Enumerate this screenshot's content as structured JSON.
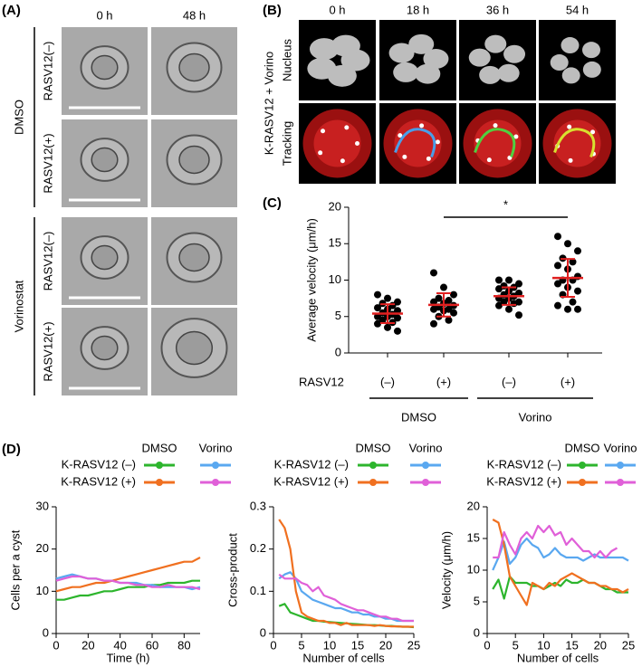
{
  "panel_a": {
    "label": "(A)",
    "columns": [
      "0 h",
      "48 h"
    ],
    "rows": [
      "RASV12(–)",
      "RASV12(+)",
      "RASV12(–)",
      "RASV12(+)"
    ],
    "groups": [
      "DMSO",
      "Vorinostat"
    ]
  },
  "panel_b": {
    "label": "(B)",
    "columns": [
      "0 h",
      "18 h",
      "36 h",
      "54 h"
    ],
    "rows": [
      "Nucleus",
      "Tracking"
    ],
    "condition": "K-RASV12 + Vorino"
  },
  "chart_data": [
    {
      "type": "strip",
      "panel_label": "(C)",
      "y_label": "Average velocity (μm/h)",
      "row_label": "RASV12",
      "categories": [
        "(–)",
        "(+)",
        "(–)",
        "(+)"
      ],
      "groups": [
        "DMSO",
        "Vorino"
      ],
      "significance": "*",
      "ylim": [
        0,
        20
      ],
      "yticks": [
        0,
        5,
        10,
        15,
        20
      ],
      "point_color": "#000000",
      "stat_color": "#e02020",
      "points": [
        [
          8,
          7.5,
          7,
          6.8,
          6.5,
          6.2,
          6,
          5.8,
          5.5,
          5.3,
          5,
          5,
          4.8,
          4.5,
          4.2,
          4,
          3.5,
          3
        ],
        [
          11,
          9,
          8,
          7.5,
          7.2,
          7,
          6.8,
          6.5,
          6.3,
          6,
          6,
          5.8,
          5.5,
          5,
          4.5,
          4
        ],
        [
          10,
          10,
          9.5,
          9.2,
          9,
          8.8,
          8.5,
          8.2,
          8,
          7.8,
          7.5,
          7.5,
          7,
          7,
          6.8,
          6.5,
          6,
          5.2
        ],
        [
          16,
          15,
          14,
          13,
          12.5,
          12,
          11.5,
          10.5,
          10,
          10,
          9.5,
          9,
          8.5,
          8,
          7,
          6.5,
          6,
          6
        ]
      ],
      "means": [
        5.4,
        6.6,
        7.8,
        10.3
      ],
      "sd": [
        1.3,
        1.6,
        1.2,
        2.6
      ]
    },
    {
      "type": "line",
      "panel_label": "(D)",
      "x_label": "Time (h)",
      "y_label": "Cells per a cyst",
      "legend": {
        "columns": [
          "DMSO",
          "Vorino"
        ],
        "rows": [
          "K-RASV12 (–)",
          "K-RASV12 (+)"
        ]
      },
      "xlim": [
        0,
        90
      ],
      "xticks": [
        0,
        20,
        40,
        60,
        80
      ],
      "ylim": [
        0,
        30
      ],
      "yticks": [
        0,
        10,
        20,
        30
      ],
      "x": [
        0,
        5,
        10,
        15,
        20,
        25,
        30,
        35,
        40,
        45,
        50,
        55,
        60,
        65,
        70,
        75,
        80,
        85,
        90
      ],
      "series": [
        {
          "color": "#2db52d",
          "values": [
            8,
            8,
            8.5,
            9,
            9,
            9.5,
            10,
            10,
            10.5,
            11,
            11,
            11,
            11.5,
            11.5,
            12,
            12,
            12,
            12.5,
            12.5
          ]
        },
        {
          "color": "#5aa8f0",
          "values": [
            13,
            13.5,
            14,
            13.5,
            13,
            13,
            12.5,
            12.5,
            12,
            12,
            12,
            11.5,
            11.5,
            11,
            11,
            11,
            11,
            10.5,
            11
          ]
        },
        {
          "color": "#f07020",
          "values": [
            10,
            10.5,
            11,
            11,
            11.5,
            12,
            12,
            12.5,
            13,
            13.5,
            14,
            14.5,
            15,
            15.5,
            16,
            16.5,
            17,
            17,
            18
          ]
        },
        {
          "color": "#e060d8",
          "values": [
            12.5,
            13,
            13.5,
            13.5,
            13,
            13,
            12.5,
            12.5,
            12,
            12,
            11.5,
            11.5,
            11,
            11,
            11.5,
            11,
            11,
            11,
            10.5
          ]
        }
      ]
    },
    {
      "type": "line",
      "x_label": "Number of cells",
      "y_label": "Cross-product",
      "legend": {
        "columns": [
          "DMSO",
          "Vorino"
        ],
        "rows": [
          "K-RASV12 (–)",
          "K-RASV12 (+)"
        ]
      },
      "xlim": [
        0,
        25
      ],
      "xticks": [
        0,
        5,
        10,
        15,
        20,
        25
      ],
      "ylim": [
        0,
        0.3
      ],
      "yticks": [
        0,
        0.1,
        0.2,
        0.3
      ],
      "x": [
        1,
        2,
        3,
        4,
        5,
        6,
        7,
        8,
        9,
        10,
        11,
        12,
        13,
        14,
        15,
        16,
        17,
        18,
        19,
        20,
        21,
        22,
        23,
        24,
        25
      ],
      "series": [
        {
          "color": "#2db52d",
          "values": [
            0.065,
            0.07,
            0.05,
            0.045,
            0.04,
            0.035,
            0.03,
            0.03,
            0.028,
            0.027,
            0.026,
            0.025,
            0.024,
            0.023,
            0.022,
            0.021,
            0.02,
            0.02,
            0.019,
            0.018,
            0.018,
            0.017,
            0.016,
            0.016,
            0.015
          ]
        },
        {
          "color": "#5aa8f0",
          "values": [
            0.13,
            0.14,
            0.145,
            0.13,
            0.1,
            0.09,
            0.08,
            0.075,
            0.07,
            0.065,
            0.06,
            0.06,
            0.055,
            0.05,
            0.05,
            0.045,
            0.045,
            0.04,
            0.04,
            0.035,
            0.035,
            0.03,
            0.03,
            0.03,
            0.03
          ]
        },
        {
          "color": "#f07020",
          "values": [
            0.27,
            0.25,
            0.2,
            0.1,
            0.05,
            0.04,
            0.035,
            0.03,
            0.03,
            0.025,
            0.025,
            0.02,
            0.025,
            0.02,
            0.02,
            0.02,
            0.02,
            0.018,
            0.02,
            0.018,
            0.017,
            0.017,
            0.016,
            0.016,
            0.016
          ]
        },
        {
          "color": "#e060d8",
          "values": [
            0.14,
            0.13,
            0.13,
            0.13,
            0.12,
            0.115,
            0.1,
            0.11,
            0.09,
            0.085,
            0.08,
            0.07,
            0.065,
            0.06,
            0.055,
            0.055,
            0.05,
            0.045,
            0.04,
            0.04,
            0.035,
            0.035,
            0.03,
            0.03,
            0.03
          ]
        }
      ]
    },
    {
      "type": "line",
      "x_label": "Number of cells",
      "y_label": "Velocity (μm/h)",
      "legend": {
        "columns": [
          "DMSO",
          "Vorino"
        ],
        "rows": [
          "K-RASV12 (–)",
          "K-RASV12 (+)"
        ]
      },
      "xlim": [
        0,
        25
      ],
      "xticks": [
        0,
        5,
        10,
        15,
        20,
        25
      ],
      "ylim": [
        0,
        20
      ],
      "yticks": [
        0,
        5,
        10,
        15,
        20
      ],
      "x": [
        1,
        2,
        3,
        4,
        5,
        6,
        7,
        8,
        9,
        10,
        11,
        12,
        13,
        14,
        15,
        16,
        17,
        18,
        19,
        20,
        21,
        22,
        23,
        24,
        25
      ],
      "series": [
        {
          "color": "#2db52d",
          "values": [
            7,
            8.5,
            5.5,
            9,
            8,
            8,
            8,
            7.5,
            7.5,
            7,
            7.5,
            8,
            7.5,
            8.5,
            8,
            8,
            8.5,
            8,
            8,
            7.5,
            7,
            7,
            6.5,
            6.5,
            6.5
          ]
        },
        {
          "color": "#5aa8f0",
          "values": [
            10,
            12,
            14.5,
            11,
            12,
            14,
            15,
            14,
            13.5,
            12,
            12.5,
            13.5,
            12.5,
            12,
            12,
            12,
            11.5,
            12,
            12.5,
            12,
            12,
            12,
            12,
            12,
            11.5
          ]
        },
        {
          "color": "#f07020",
          "values": [
            18,
            17.5,
            14,
            9,
            7.5,
            6,
            4.5,
            8,
            7.5,
            7,
            8,
            7.5,
            8.5,
            9,
            9.5,
            9,
            8.5,
            8,
            8,
            7.5,
            7.5,
            7,
            7,
            6.5,
            7
          ]
        },
        {
          "color": "#e060d8",
          "values": [
            12,
            12,
            16,
            14,
            12.5,
            15,
            16,
            15,
            17,
            16,
            17,
            15.5,
            16,
            14,
            15,
            14,
            13,
            13,
            12,
            13,
            12,
            13,
            13.5,
            null,
            null
          ]
        }
      ]
    }
  ]
}
